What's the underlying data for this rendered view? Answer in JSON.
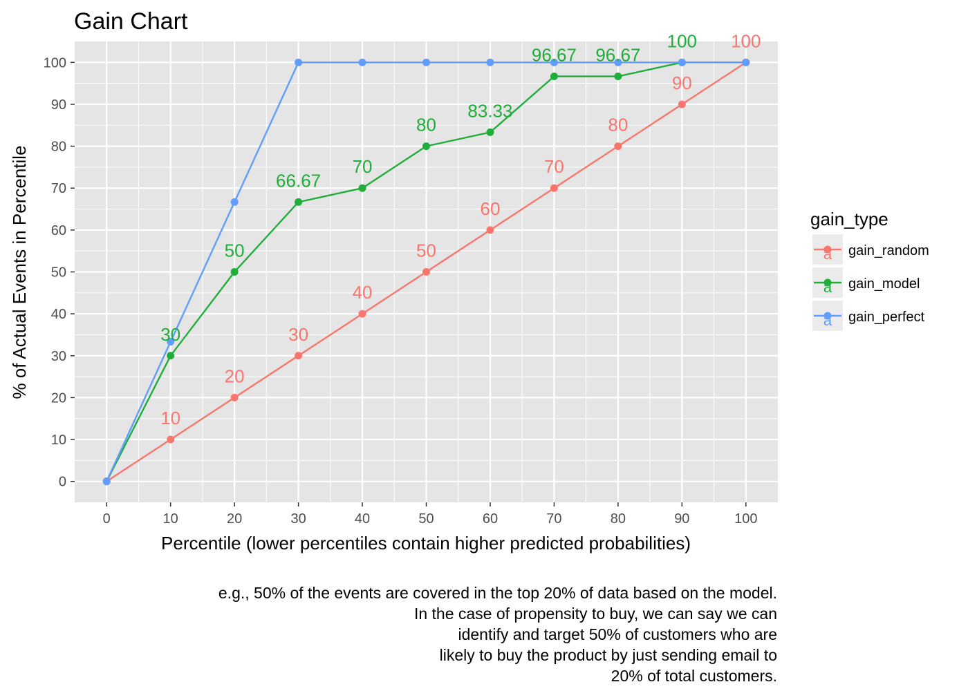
{
  "chart_data": {
    "type": "line",
    "title": "Gain Chart",
    "xlabel": "Percentile (lower percentiles contain higher predicted probabilities)",
    "ylabel": "% of Actual Events in Percentile",
    "x": [
      0,
      10,
      20,
      30,
      40,
      50,
      60,
      70,
      80,
      90,
      100
    ],
    "x_ticks": [
      "0",
      "10",
      "20",
      "30",
      "40",
      "50",
      "60",
      "70",
      "80",
      "90",
      "100"
    ],
    "y_ticks": [
      "0",
      "10",
      "20",
      "30",
      "40",
      "50",
      "60",
      "70",
      "80",
      "90",
      "100"
    ],
    "xlim": [
      -5,
      105
    ],
    "ylim": [
      -5,
      105
    ],
    "grid": true,
    "legend": {
      "title": "gain_type",
      "position": "right"
    },
    "series": [
      {
        "name": "gain_random",
        "color": "#F8766D",
        "values": [
          0,
          10,
          20,
          30,
          40,
          50,
          60,
          70,
          80,
          90,
          100
        ],
        "labels": [
          "",
          "10",
          "20",
          "30",
          "40",
          "50",
          "60",
          "70",
          "80",
          "90",
          "100"
        ]
      },
      {
        "name": "gain_model",
        "color": "#1FAE39",
        "values": [
          0,
          30,
          50,
          66.67,
          70,
          80,
          83.33,
          96.67,
          96.67,
          100,
          100
        ],
        "labels": [
          "",
          "30",
          "50",
          "66.67",
          "70",
          "80",
          "83.33",
          "96.67",
          "96.67",
          "100",
          ""
        ]
      },
      {
        "name": "gain_perfect",
        "color": "#619CFF",
        "values": [
          0,
          33.33,
          66.67,
          100,
          100,
          100,
          100,
          100,
          100,
          100,
          100
        ],
        "labels": []
      }
    ],
    "caption": [
      "e.g., 50% of the events are covered in the top 20% of data based on the model. ",
      "In the case of propensity to buy, we can say we can",
      "identify and target 50% of customers who are",
      "likely to buy the product by just sending email to",
      "20% of total customers."
    ],
    "legend_key_glyph": "a"
  },
  "colors": {
    "panel_background": "#E5E5E5",
    "grid": "#FFFFFF",
    "legend_key_background": "#EBEBEB"
  }
}
